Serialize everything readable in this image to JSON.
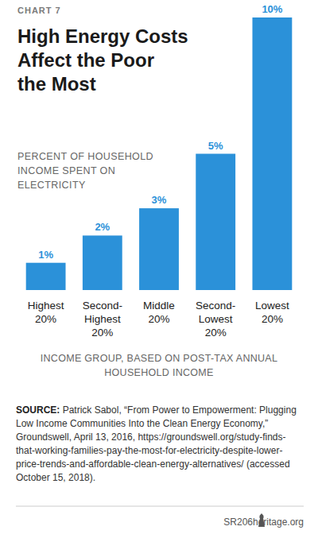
{
  "chart_data": {
    "type": "bar",
    "chart_label": "CHART 7",
    "title": "High Energy Costs\nAffect the Poor\nthe Most",
    "subtitle": "PERCENT OF HOUSEHOLD\nINCOME SPENT ON\nELECTRICITY",
    "categories": [
      "Highest 20%",
      "Second-Highest 20%",
      "Middle 20%",
      "Second-Lowest 20%",
      "Lowest 20%"
    ],
    "values": [
      1,
      2,
      3,
      5,
      10
    ],
    "value_labels": [
      "1%",
      "2%",
      "3%",
      "5%",
      "10%"
    ],
    "color": "#2b91d9",
    "ylim": [
      0,
      10
    ],
    "data_labels": true,
    "tick_labels": "x",
    "xlabel": "INCOME GROUP, BASED ON POST-TAX ANNUAL\nHOUSEHOLD INCOME",
    "source_label": "SOURCE:",
    "source": "Patrick Sabol, “From Power to Empowerment: Plugging Low Income Communities Into the Clean Energy Economy,” Groundswell, April 13, 2016, https://groundswell.org/study-finds-that-working-families-pay-the-most-for-electricity-despite-lower-price-trends-and-affordable-clean-energy-alternatives/ (accessed October 15, 2018).",
    "report": "SR206",
    "publisher": "heritage.org"
  }
}
